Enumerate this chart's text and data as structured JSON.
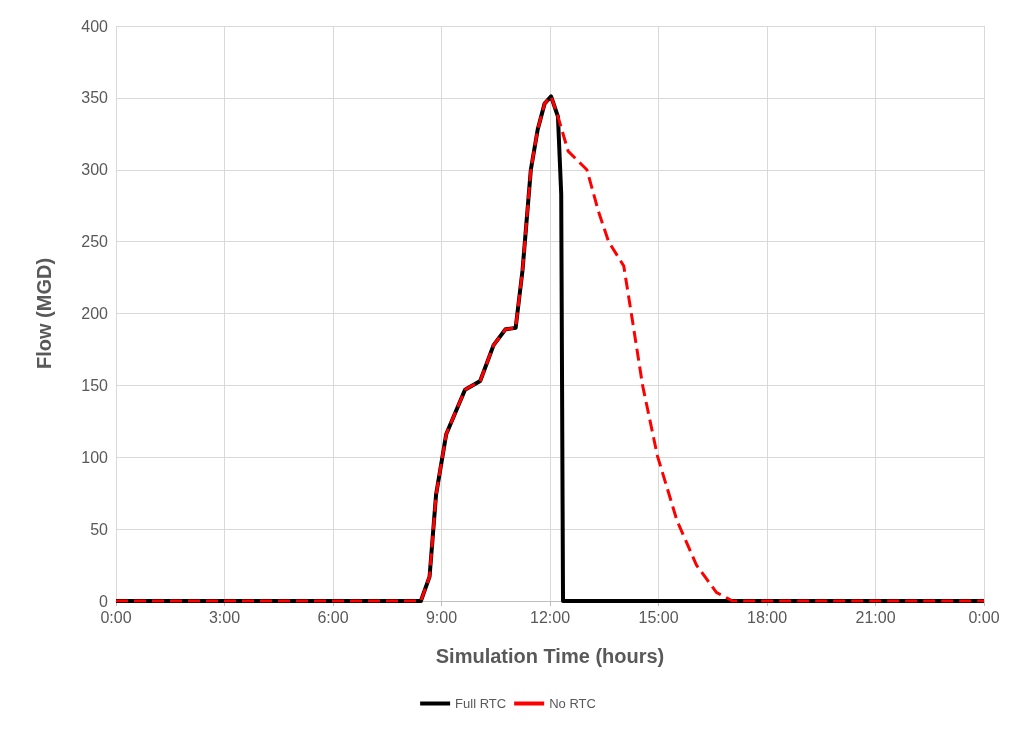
{
  "chart_data": {
    "type": "line",
    "xlabel": "Simulation Time (hours)",
    "ylabel": "Flow (MGD)",
    "xlim": [
      0,
      24
    ],
    "xticks": [
      {
        "value": 0,
        "label": "0:00"
      },
      {
        "value": 3,
        "label": "3:00"
      },
      {
        "value": 6,
        "label": "6:00"
      },
      {
        "value": 9,
        "label": "9:00"
      },
      {
        "value": 12,
        "label": "12:00"
      },
      {
        "value": 15,
        "label": "15:00"
      },
      {
        "value": 18,
        "label": "18:00"
      },
      {
        "value": 21,
        "label": "21:00"
      },
      {
        "value": 24,
        "label": "0:00"
      }
    ],
    "ylim": [
      0,
      400
    ],
    "yticks": [
      0,
      50,
      100,
      150,
      200,
      250,
      300,
      350,
      400
    ],
    "grid": true,
    "legend": "bottom",
    "marker": "none",
    "series": [
      {
        "name": "Full RTC",
        "color": "#000000",
        "line_style": "solid",
        "x": [
          0,
          8.43,
          8.67,
          8.85,
          9.13,
          9.65,
          10.07,
          10.44,
          10.77,
          11.05,
          11.24,
          11.47,
          11.66,
          11.85,
          12.03,
          12.22,
          12.31,
          12.36,
          24
        ],
        "values": [
          0,
          0,
          17,
          74,
          116,
          147,
          153,
          178,
          189,
          190,
          230,
          300,
          328,
          346,
          351,
          337,
          283,
          0,
          0
        ]
      },
      {
        "name": "No RTC",
        "color": "#ff0000",
        "line_style": "dashed",
        "x": [
          0,
          8.43,
          8.67,
          8.85,
          9.13,
          9.65,
          10.07,
          10.44,
          10.77,
          11.05,
          11.24,
          11.47,
          11.66,
          11.85,
          12.03,
          12.22,
          12.5,
          13.02,
          13.34,
          13.62,
          14.04,
          14.28,
          14.56,
          14.97,
          15.51,
          16.05,
          16.6,
          17.05,
          24
        ],
        "values": [
          0,
          0,
          17,
          74,
          116,
          147,
          153,
          178,
          189,
          190,
          230,
          300,
          328,
          346,
          351,
          337,
          313,
          300,
          271,
          250,
          233,
          195,
          150,
          101,
          56,
          25,
          6,
          0,
          0
        ]
      }
    ]
  }
}
